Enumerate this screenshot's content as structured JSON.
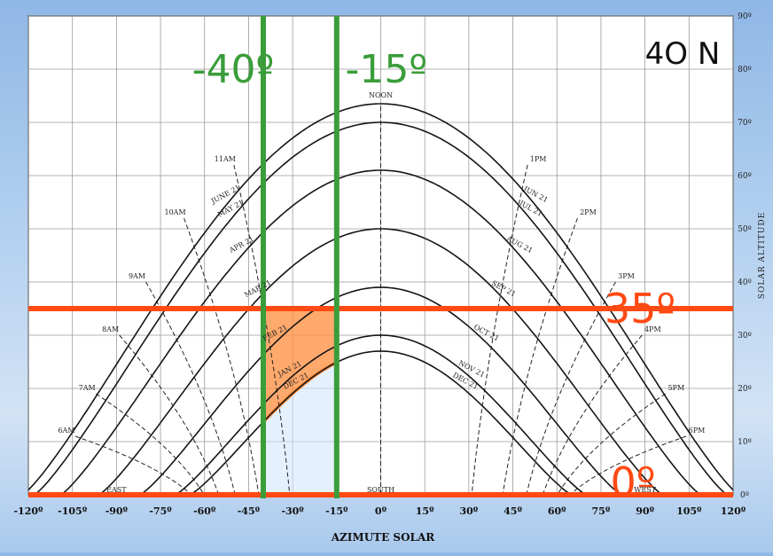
{
  "chart_data": {
    "type": "line",
    "title": "",
    "latitude_label": "4O N",
    "xlabel": "AZIMUTE SOLAR",
    "ylabel": "SOLAR ALTITUDE",
    "xlim": [
      -120,
      120
    ],
    "ylim": [
      0,
      90
    ],
    "x_ticks": [
      {
        "v": -120,
        "label": "-120º"
      },
      {
        "v": -105,
        "label": "-105º"
      },
      {
        "v": -90,
        "label": "-90º"
      },
      {
        "v": -75,
        "label": "-75º"
      },
      {
        "v": -60,
        "label": "-60º"
      },
      {
        "v": -45,
        "label": "-45º"
      },
      {
        "v": -30,
        "label": "-30º"
      },
      {
        "v": -15,
        "label": "-15º"
      },
      {
        "v": 0,
        "label": "0º"
      },
      {
        "v": 15,
        "label": "15º"
      },
      {
        "v": 30,
        "label": "30º"
      },
      {
        "v": 45,
        "label": "45º"
      },
      {
        "v": 60,
        "label": "60º"
      },
      {
        "v": 75,
        "label": "75º"
      },
      {
        "v": 90,
        "label": "90º"
      },
      {
        "v": 105,
        "label": "105º"
      },
      {
        "v": 120,
        "label": "120º"
      }
    ],
    "y_ticks": [
      {
        "v": 0,
        "label": "0º"
      },
      {
        "v": 10,
        "label": "10º"
      },
      {
        "v": 20,
        "label": "20º"
      },
      {
        "v": 30,
        "label": "30º"
      },
      {
        "v": 40,
        "label": "40º"
      },
      {
        "v": 50,
        "label": "50º"
      },
      {
        "v": 60,
        "label": "60º"
      },
      {
        "v": 70,
        "label": "70º"
      },
      {
        "v": 80,
        "label": "80º"
      },
      {
        "v": 90,
        "label": "90º"
      }
    ],
    "grid": true,
    "series": [
      {
        "name": "JUNE 21",
        "label_right": "JUN 21",
        "noon_altitude": 73.5,
        "sunrise_azimuth": 122
      },
      {
        "name": "MAY 21",
        "label_right": "JUL 21",
        "noon_altitude": 70,
        "sunrise_azimuth": 118
      },
      {
        "name": "APR 21",
        "label_right": "AUG 21",
        "noon_altitude": 61,
        "sunrise_azimuth": 109
      },
      {
        "name": "MAR 21",
        "label_right": "SEP 21",
        "noon_altitude": 50,
        "sunrise_azimuth": 96
      },
      {
        "name": "FEB 21",
        "label_right": "OCT 21",
        "noon_altitude": 39,
        "sunrise_azimuth": 82
      },
      {
        "name": "JAN 21",
        "label_right": "NOV 21",
        "noon_altitude": 30,
        "sunrise_azimuth": 70
      },
      {
        "name": "DEC 21",
        "label_right": "DEC 21",
        "noon_altitude": 27,
        "sunrise_azimuth": 65
      }
    ],
    "hour_lines": [
      {
        "label": "6AM",
        "az": -104,
        "alt": 12
      },
      {
        "label": "7AM",
        "az": -97,
        "alt": 20
      },
      {
        "label": "8AM",
        "az": -89,
        "alt": 31
      },
      {
        "label": "9AM",
        "az": -80,
        "alt": 41
      },
      {
        "label": "10AM",
        "az": -67,
        "alt": 53
      },
      {
        "label": "11AM",
        "az": -50,
        "alt": 63
      },
      {
        "label": "NOON",
        "az": 0,
        "alt": 75
      },
      {
        "label": "1PM",
        "az": 50,
        "alt": 63
      },
      {
        "label": "2PM",
        "az": 67,
        "alt": 53
      },
      {
        "label": "3PM",
        "az": 80,
        "alt": 41
      },
      {
        "label": "4PM",
        "az": 89,
        "alt": 31
      },
      {
        "label": "5PM",
        "az": 97,
        "alt": 20
      },
      {
        "label": "6PM",
        "az": 104,
        "alt": 12
      }
    ],
    "ground_labels": [
      {
        "label": "EAST",
        "az": -90
      },
      {
        "label": "SOUTH",
        "az": 0
      },
      {
        "label": "WEST",
        "az": 90
      }
    ],
    "annotations": {
      "vertical_lines": [
        {
          "az": -40,
          "label": "-40º",
          "color": "#3a9d3a"
        },
        {
          "az": -15,
          "label": "-15º",
          "color": "#3a9d3a"
        }
      ],
      "horizontal_lines": [
        {
          "alt": 35,
          "label": "35º",
          "color": "#ff4a14"
        },
        {
          "alt": 0,
          "label": "0º",
          "color": "#ff4a14"
        }
      ],
      "shaded_region": {
        "az_from": -40,
        "az_to": -15,
        "alt_to": 35,
        "color": "#ff8c3c"
      }
    }
  }
}
